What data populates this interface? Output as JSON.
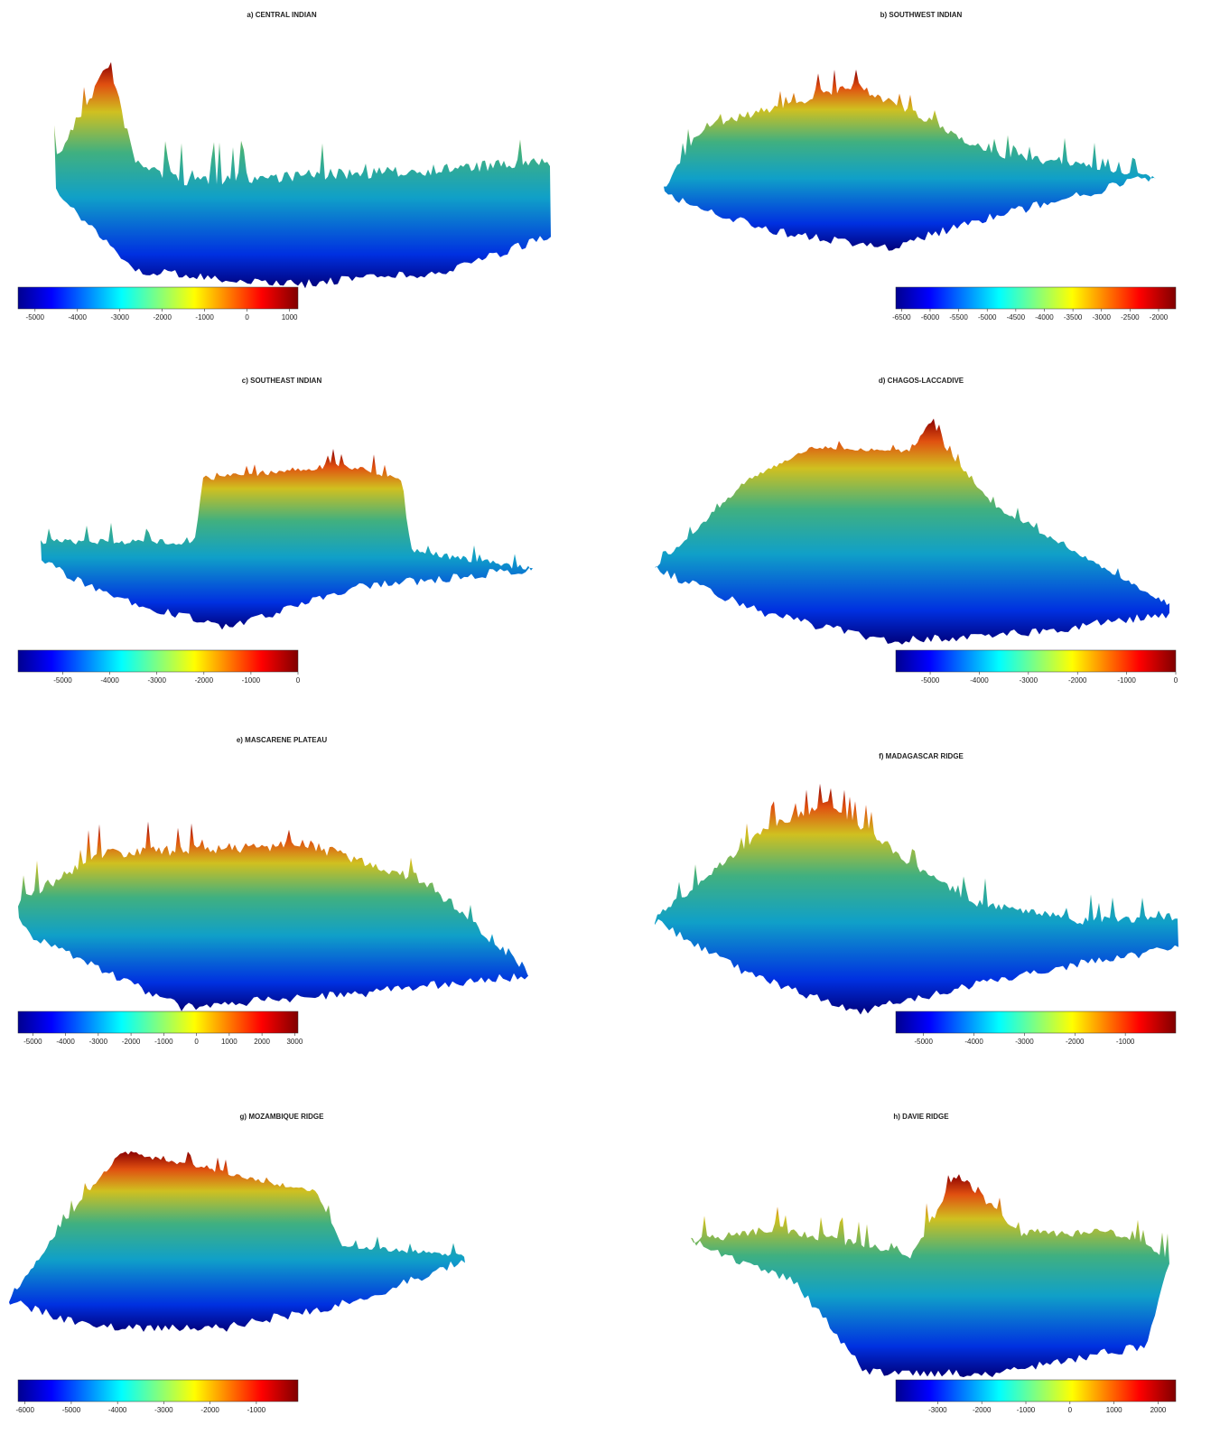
{
  "chart_data": [
    {
      "type": "surface",
      "title": "a) CENTRAL INDIAN",
      "colormap": "jet",
      "xlim": [
        -5400,
        1200
      ],
      "xticks": [
        -5000,
        -4000,
        -3000,
        -2000,
        -1000,
        0,
        1000
      ]
    },
    {
      "type": "surface",
      "title": "b) SOUTHWEST INDIAN",
      "colormap": "jet",
      "xlim": [
        -6600,
        -1700
      ],
      "xticks": [
        -6500,
        -6000,
        -5500,
        -5000,
        -4500,
        -4000,
        -3500,
        -3000,
        -2500,
        -2000
      ]
    },
    {
      "type": "surface",
      "title": "c) SOUTHEAST INDIAN",
      "colormap": "jet",
      "xlim": [
        -5950,
        0
      ],
      "xticks": [
        -5000,
        -4000,
        -3000,
        -2000,
        -1000,
        0
      ]
    },
    {
      "type": "surface",
      "title": "d) CHAGOS-LACCADIVE",
      "colormap": "jet",
      "xlim": [
        -5700,
        0
      ],
      "xticks": [
        -5000,
        -4000,
        -3000,
        -2000,
        -1000,
        0
      ]
    },
    {
      "type": "surface",
      "title": "e) MASCARENE PLATEAU",
      "colormap": "jet",
      "xlim": [
        -5450,
        3100
      ],
      "xticks": [
        -5000,
        -4000,
        -3000,
        -2000,
        -1000,
        0,
        1000,
        2000,
        3000
      ]
    },
    {
      "type": "surface",
      "title": "f) MADAGASCAR RIDGE",
      "colormap": "jet",
      "xlim": [
        -5550,
        0
      ],
      "xticks": [
        -5000,
        -4000,
        -3000,
        -2000,
        -1000
      ]
    },
    {
      "type": "surface",
      "title": "g) MOZAMBIQUE RIDGE",
      "colormap": "jet",
      "xlim": [
        -6150,
        -100
      ],
      "xticks": [
        -6000,
        -5000,
        -4000,
        -3000,
        -2000,
        -1000
      ]
    },
    {
      "type": "surface",
      "title": "h) DAVIE RIDGE",
      "colormap": "jet",
      "xlim": [
        -3950,
        2400
      ],
      "xticks": [
        -3000,
        -2000,
        -1000,
        0,
        1000,
        2000
      ]
    }
  ]
}
